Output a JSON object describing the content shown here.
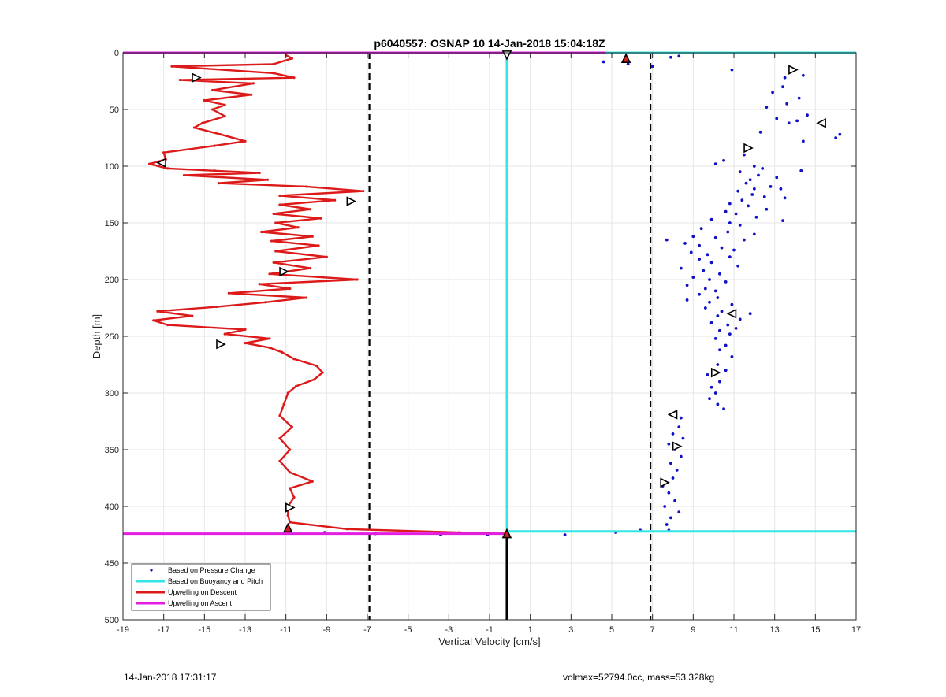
{
  "chart_data": {
    "type": "scatter",
    "title": "p6040557: OSNAP 10 14-Jan-2018 15:04:18Z",
    "xlabel": "Vertical Velocity [cm/s]",
    "ylabel": "Depth [m]",
    "xlim": [
      -19,
      17
    ],
    "ylim": [
      0,
      500
    ],
    "y_reversed": true,
    "grid": true,
    "legend_position": "bottom-left",
    "xticks": [
      -19,
      -17,
      -15,
      -13,
      -11,
      -9,
      -7,
      -5,
      -3,
      -1,
      1,
      3,
      5,
      7,
      9,
      11,
      13,
      15,
      17
    ],
    "yticks": [
      0,
      50,
      100,
      150,
      200,
      250,
      300,
      350,
      400,
      450,
      500
    ],
    "reference_lines": [
      {
        "kind": "vertical-dashed",
        "x": -6.9
      },
      {
        "kind": "vertical-dashed",
        "x": 6.9
      },
      {
        "kind": "vertical-solid",
        "x": -0.15,
        "y_from": 425,
        "y_to": 500
      }
    ],
    "series": [
      {
        "name": "Based on Pressure Change",
        "style": "dots",
        "color": "#1010c8",
        "points": [
          [
            4.6,
            8
          ],
          [
            5.8,
            10
          ],
          [
            7.0,
            12
          ],
          [
            7.9,
            4
          ],
          [
            8.3,
            3
          ],
          [
            10.9,
            15
          ],
          [
            13.5,
            22
          ],
          [
            14.4,
            20
          ],
          [
            13.4,
            30
          ],
          [
            14.2,
            40
          ],
          [
            12.9,
            35
          ],
          [
            13.6,
            45
          ],
          [
            12.6,
            48
          ],
          [
            14.6,
            55
          ],
          [
            13.1,
            58
          ],
          [
            13.7,
            62
          ],
          [
            14.1,
            60
          ],
          [
            12.3,
            70
          ],
          [
            14.4,
            78
          ],
          [
            16.0,
            75
          ],
          [
            16.2,
            72
          ],
          [
            11.5,
            90
          ],
          [
            10.5,
            95
          ],
          [
            10.1,
            98
          ],
          [
            12.0,
            100
          ],
          [
            12.4,
            102
          ],
          [
            14.3,
            104
          ],
          [
            11.3,
            105
          ],
          [
            12.2,
            108
          ],
          [
            13.1,
            110
          ],
          [
            11.8,
            112
          ],
          [
            11.6,
            115
          ],
          [
            12.8,
            118
          ],
          [
            13.3,
            120
          ],
          [
            12.0,
            120
          ],
          [
            11.2,
            122
          ],
          [
            11.9,
            125
          ],
          [
            12.5,
            127
          ],
          [
            13.5,
            128
          ],
          [
            11.4,
            130
          ],
          [
            10.8,
            133
          ],
          [
            11.7,
            135
          ],
          [
            12.6,
            138
          ],
          [
            10.6,
            140
          ],
          [
            11.1,
            142
          ],
          [
            12.1,
            145
          ],
          [
            13.4,
            148
          ],
          [
            9.9,
            147
          ],
          [
            10.8,
            150
          ],
          [
            11.3,
            152
          ],
          [
            9.4,
            155
          ],
          [
            10.7,
            158
          ],
          [
            12.0,
            160
          ],
          [
            9.0,
            162
          ],
          [
            10.1,
            163
          ],
          [
            11.5,
            165
          ],
          [
            7.7,
            165
          ],
          [
            8.6,
            168
          ],
          [
            9.3,
            170
          ],
          [
            10.4,
            172
          ],
          [
            11.0,
            174
          ],
          [
            8.9,
            176
          ],
          [
            9.7,
            178
          ],
          [
            10.8,
            180
          ],
          [
            9.3,
            182
          ],
          [
            9.9,
            185
          ],
          [
            11.2,
            188
          ],
          [
            8.4,
            190
          ],
          [
            9.5,
            192
          ],
          [
            10.3,
            195
          ],
          [
            9.0,
            198
          ],
          [
            9.8,
            200
          ],
          [
            10.6,
            202
          ],
          [
            8.7,
            205
          ],
          [
            9.6,
            208
          ],
          [
            10.1,
            210
          ],
          [
            9.3,
            213
          ],
          [
            10.2,
            216
          ],
          [
            8.7,
            218
          ],
          [
            9.8,
            220
          ],
          [
            10.9,
            222
          ],
          [
            9.6,
            225
          ],
          [
            10.4,
            228
          ],
          [
            11.8,
            230
          ],
          [
            10.2,
            232
          ],
          [
            11.3,
            235
          ],
          [
            9.9,
            238
          ],
          [
            10.7,
            240
          ],
          [
            11.1,
            243
          ],
          [
            10.3,
            245
          ],
          [
            10.8,
            248
          ],
          [
            10.1,
            252
          ],
          [
            10.6,
            258
          ],
          [
            10.3,
            262
          ],
          [
            10.9,
            268
          ],
          [
            10.2,
            275
          ],
          [
            10.6,
            280
          ],
          [
            9.7,
            284
          ],
          [
            10.3,
            290
          ],
          [
            9.9,
            295
          ],
          [
            10.1,
            300
          ],
          [
            9.8,
            305
          ],
          [
            10.2,
            310
          ],
          [
            10.5,
            314
          ],
          [
            8.0,
            318
          ],
          [
            8.4,
            322
          ],
          [
            8.3,
            330
          ],
          [
            8.0,
            336
          ],
          [
            8.5,
            340
          ],
          [
            7.8,
            345
          ],
          [
            8.1,
            350
          ],
          [
            8.4,
            356
          ],
          [
            7.9,
            362
          ],
          [
            8.2,
            368
          ],
          [
            8.0,
            375
          ],
          [
            7.5,
            382
          ],
          [
            7.8,
            388
          ],
          [
            8.1,
            395
          ],
          [
            7.6,
            400
          ],
          [
            8.3,
            405
          ],
          [
            7.9,
            410
          ],
          [
            7.7,
            416
          ],
          [
            7.8,
            421
          ],
          [
            6.4,
            421
          ],
          [
            5.2,
            423
          ],
          [
            2.7,
            425
          ],
          [
            -1.1,
            425
          ],
          [
            -3.4,
            425
          ],
          [
            -6.6,
            424
          ],
          [
            -9.1,
            423
          ]
        ]
      },
      {
        "name": "Based on Buoyancy and Pitch",
        "style": "line",
        "color": "#33e5e5",
        "segments": [
          [
            [
              -0.2,
              0
            ],
            [
              17,
              0
            ]
          ],
          [
            [
              -0.15,
              0
            ],
            [
              -0.15,
              425
            ]
          ],
          [
            [
              -0.15,
              422
            ],
            [
              17,
              422
            ]
          ]
        ]
      },
      {
        "name": "Upwelling on Descent",
        "style": "line",
        "color": "#dd1a1a",
        "points": [
          [
            -11.0,
            2
          ],
          [
            -10.7,
            5
          ],
          [
            -11.6,
            10
          ],
          [
            -16.6,
            12
          ],
          [
            -11.6,
            18
          ],
          [
            -10.6,
            22
          ],
          [
            -16.2,
            24
          ],
          [
            -12.6,
            27
          ],
          [
            -14.6,
            33
          ],
          [
            -12.7,
            37
          ],
          [
            -15.0,
            42
          ],
          [
            -14.0,
            46
          ],
          [
            -14.6,
            50
          ],
          [
            -14.0,
            56
          ],
          [
            -15.1,
            62
          ],
          [
            -15.5,
            66
          ],
          [
            -14.2,
            72
          ],
          [
            -13.0,
            78
          ],
          [
            -14.5,
            82
          ],
          [
            -17.0,
            88
          ],
          [
            -16.9,
            94
          ],
          [
            -17.7,
            98
          ],
          [
            -16.8,
            102
          ],
          [
            -14.5,
            104
          ],
          [
            -12.3,
            106
          ],
          [
            -16.0,
            108
          ],
          [
            -11.9,
            112
          ],
          [
            -14.3,
            115
          ],
          [
            -10.0,
            118
          ],
          [
            -7.2,
            122
          ],
          [
            -11.3,
            126
          ],
          [
            -8.6,
            130
          ],
          [
            -11.3,
            134
          ],
          [
            -9.8,
            138
          ],
          [
            -11.6,
            142
          ],
          [
            -9.3,
            146
          ],
          [
            -11.5,
            150
          ],
          [
            -10.4,
            154
          ],
          [
            -12.2,
            158
          ],
          [
            -9.7,
            162
          ],
          [
            -11.7,
            166
          ],
          [
            -9.4,
            170
          ],
          [
            -11.5,
            175
          ],
          [
            -9.0,
            180
          ],
          [
            -11.6,
            185
          ],
          [
            -9.8,
            190
          ],
          [
            -11.8,
            195
          ],
          [
            -7.5,
            200
          ],
          [
            -12.3,
            204
          ],
          [
            -10.8,
            208
          ],
          [
            -13.8,
            212
          ],
          [
            -10.0,
            216
          ],
          [
            -12.0,
            220
          ],
          [
            -14.4,
            224
          ],
          [
            -17.3,
            228
          ],
          [
            -15.6,
            232
          ],
          [
            -17.5,
            236
          ],
          [
            -16.8,
            240
          ],
          [
            -13.0,
            244
          ],
          [
            -14.0,
            248
          ],
          [
            -11.8,
            252
          ],
          [
            -13.0,
            256
          ],
          [
            -11.8,
            260
          ],
          [
            -11.2,
            264
          ],
          [
            -10.6,
            270
          ],
          [
            -9.5,
            276
          ],
          [
            -9.2,
            282
          ],
          [
            -9.6,
            288
          ],
          [
            -10.5,
            294
          ],
          [
            -10.9,
            300
          ],
          [
            -11.1,
            310
          ],
          [
            -11.3,
            320
          ],
          [
            -10.7,
            330
          ],
          [
            -11.3,
            340
          ],
          [
            -10.8,
            350
          ],
          [
            -11.3,
            360
          ],
          [
            -10.8,
            370
          ],
          [
            -9.7,
            378
          ],
          [
            -10.8,
            384
          ],
          [
            -10.6,
            392
          ],
          [
            -10.9,
            400
          ],
          [
            -10.9,
            408
          ],
          [
            -10.8,
            414
          ],
          [
            -8.0,
            420
          ],
          [
            -2.5,
            423
          ],
          [
            -0.3,
            424
          ]
        ]
      },
      {
        "name": "Upwelling on Ascent",
        "style": "line",
        "color": "#e11ee1",
        "segments": [
          [
            [
              -19,
              0
            ],
            [
              4.7,
              0
            ]
          ],
          [
            [
              -19,
              424
            ],
            [
              -0.3,
              424
            ]
          ]
        ]
      }
    ],
    "markers": [
      {
        "shape": "triangle-right",
        "x": -15.4,
        "y": 22,
        "color": "#000000"
      },
      {
        "shape": "triangle-left",
        "x": -17.1,
        "y": 97,
        "color": "#000000"
      },
      {
        "shape": "triangle-right",
        "x": -7.8,
        "y": 131,
        "color": "#000000"
      },
      {
        "shape": "triangle-right",
        "x": -11.1,
        "y": 193,
        "color": "#000000"
      },
      {
        "shape": "triangle-right",
        "x": -14.2,
        "y": 257,
        "color": "#000000"
      },
      {
        "shape": "triangle-right",
        "x": -10.8,
        "y": 401,
        "color": "#000000"
      },
      {
        "shape": "triangle-up-filled",
        "x": -10.9,
        "y": 419,
        "color": "#d02020"
      },
      {
        "shape": "triangle-up-filled",
        "x": -0.15,
        "y": 424,
        "color": "#d02020"
      },
      {
        "shape": "triangle-down",
        "x": -0.15,
        "y": 2,
        "color": "#000000"
      },
      {
        "shape": "triangle-up-filled",
        "x": 5.7,
        "y": 5,
        "color": "#d02020"
      },
      {
        "shape": "triangle-right",
        "x": 13.9,
        "y": 15,
        "color": "#000000"
      },
      {
        "shape": "triangle-left",
        "x": 15.3,
        "y": 62,
        "color": "#000000"
      },
      {
        "shape": "triangle-right",
        "x": 11.7,
        "y": 84,
        "color": "#000000"
      },
      {
        "shape": "triangle-left",
        "x": 10.9,
        "y": 230,
        "color": "#000000"
      },
      {
        "shape": "triangle-right",
        "x": 10.1,
        "y": 282,
        "color": "#000000"
      },
      {
        "shape": "triangle-left",
        "x": 8.0,
        "y": 319,
        "color": "#000000"
      },
      {
        "shape": "triangle-right",
        "x": 8.2,
        "y": 347,
        "color": "#000000"
      },
      {
        "shape": "triangle-right",
        "x": 7.6,
        "y": 379,
        "color": "#000000"
      }
    ]
  },
  "footer": {
    "timestamp": "14-Jan-2018 17:31:17",
    "info": "volmax=52794.0cc, mass=53.328kg"
  }
}
